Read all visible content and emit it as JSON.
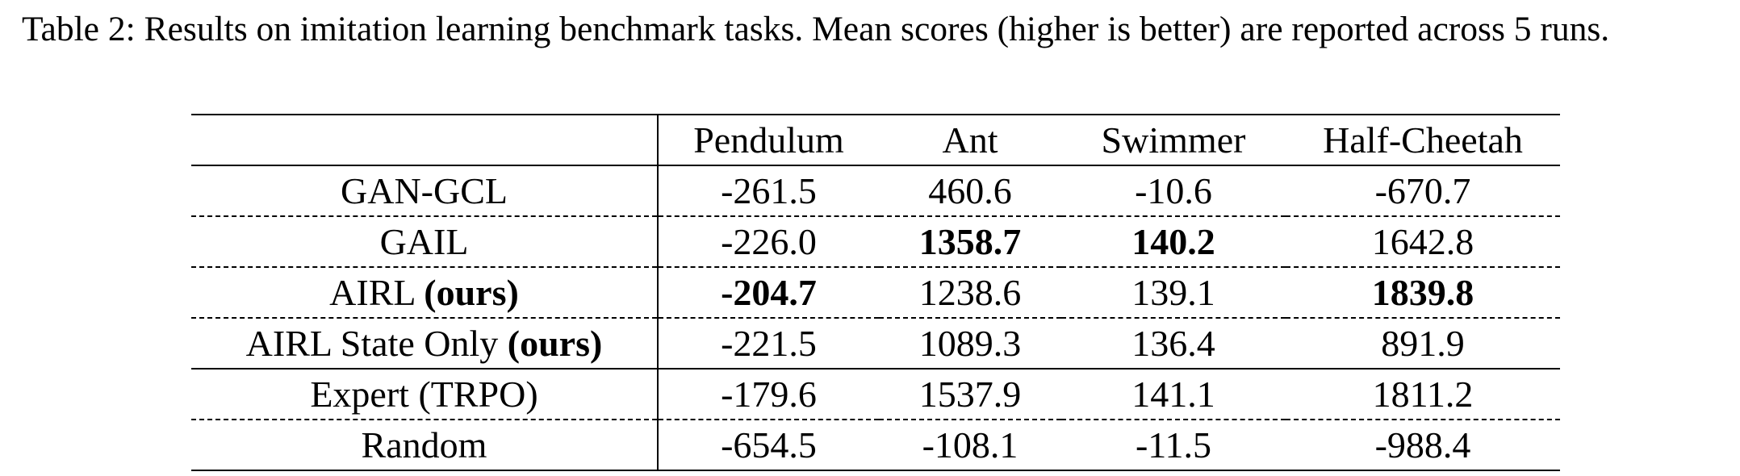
{
  "caption": "Table 2: Results on imitation learning benchmark tasks. Mean scores (higher is better) are reported across 5 runs.",
  "table": {
    "headers": [
      "",
      "Pendulum",
      "Ant",
      "Swimmer",
      "Half-Cheetah"
    ],
    "rows": [
      {
        "method": "GAN-GCL",
        "suffix": "",
        "values": [
          "-261.5",
          "460.6",
          "-10.6",
          "-670.7"
        ],
        "bold": [
          false,
          false,
          false,
          false
        ],
        "sep": "dashed"
      },
      {
        "method": "GAIL",
        "suffix": "",
        "values": [
          "-226.0",
          "1358.7",
          "140.2",
          "1642.8"
        ],
        "bold": [
          false,
          true,
          true,
          false
        ],
        "sep": "dashed"
      },
      {
        "method": "AIRL ",
        "suffix": "(ours)",
        "values": [
          "-204.7",
          "1238.6",
          "139.1",
          "1839.8"
        ],
        "bold": [
          true,
          false,
          false,
          true
        ],
        "sep": "dashed"
      },
      {
        "method": "AIRL State Only ",
        "suffix": "(ours)",
        "values": [
          "-221.5",
          "1089.3",
          "136.4",
          "891.9"
        ],
        "bold": [
          false,
          false,
          false,
          false
        ],
        "sep": "solid"
      },
      {
        "method": "Expert (TRPO)",
        "suffix": "",
        "values": [
          "-179.6",
          "1537.9",
          "141.1",
          "1811.2"
        ],
        "bold": [
          false,
          false,
          false,
          false
        ],
        "sep": "dashed"
      },
      {
        "method": "Random",
        "suffix": "",
        "values": [
          "-654.5",
          "-108.1",
          "-11.5",
          "-988.4"
        ],
        "bold": [
          false,
          false,
          false,
          false
        ],
        "sep": "last"
      }
    ]
  }
}
